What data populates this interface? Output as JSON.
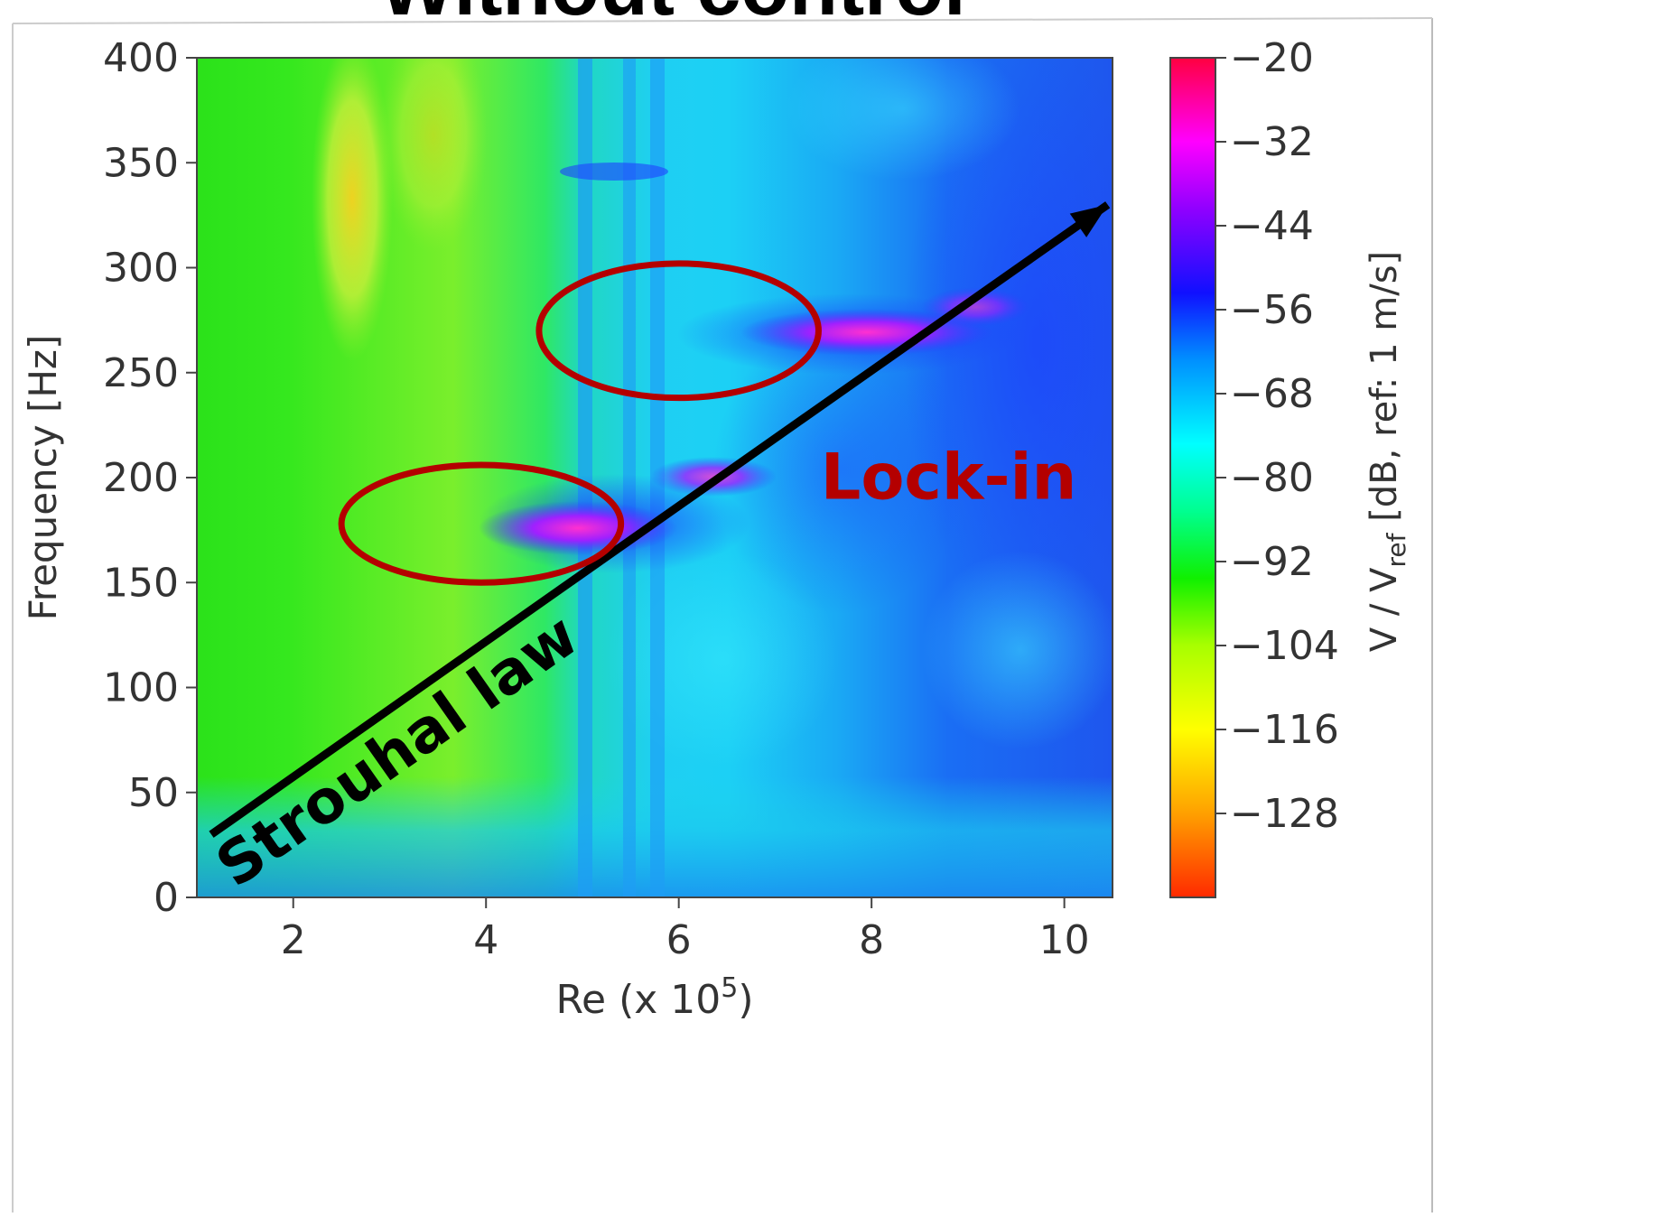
{
  "chart_data": {
    "type": "heatmap",
    "title": "Without control",
    "xlabel_main": "Re (x 10",
    "xlabel_exp": "5",
    "xlabel_close": ")",
    "ylabel": "Frequency [Hz]",
    "xlim": [
      1,
      10.5
    ],
    "ylim": [
      0,
      400
    ],
    "x_ticks": [
      2,
      4,
      6,
      8,
      10
    ],
    "y_ticks": [
      0,
      50,
      100,
      150,
      200,
      250,
      300,
      350,
      400
    ],
    "colorbar": {
      "label_prefix": "V / V",
      "label_sub": "ref",
      "label_suffix": " [dB, ref: 1 m/s]",
      "range": [
        -140,
        -20
      ],
      "ticks": [
        "−20",
        "−32",
        "−44",
        "−56",
        "−68",
        "−80",
        "−92",
        "−104",
        "−116",
        "−128"
      ],
      "tick_values": [
        -20,
        -32,
        -44,
        -56,
        -68,
        -80,
        -92,
        -104,
        -116,
        -128
      ]
    },
    "annotations": {
      "strouhal_label": "Strouhal law",
      "strouhal_line": {
        "from": [
          1.15,
          30
        ],
        "to": [
          10.45,
          330
        ]
      },
      "lockin_label": "Lock-in",
      "lockin_regions": [
        {
          "center": [
            6.0,
            270
          ],
          "rx": 1.45,
          "ry": 32
        },
        {
          "center": [
            3.95,
            178
          ],
          "rx": 1.45,
          "ry": 28
        }
      ]
    }
  }
}
